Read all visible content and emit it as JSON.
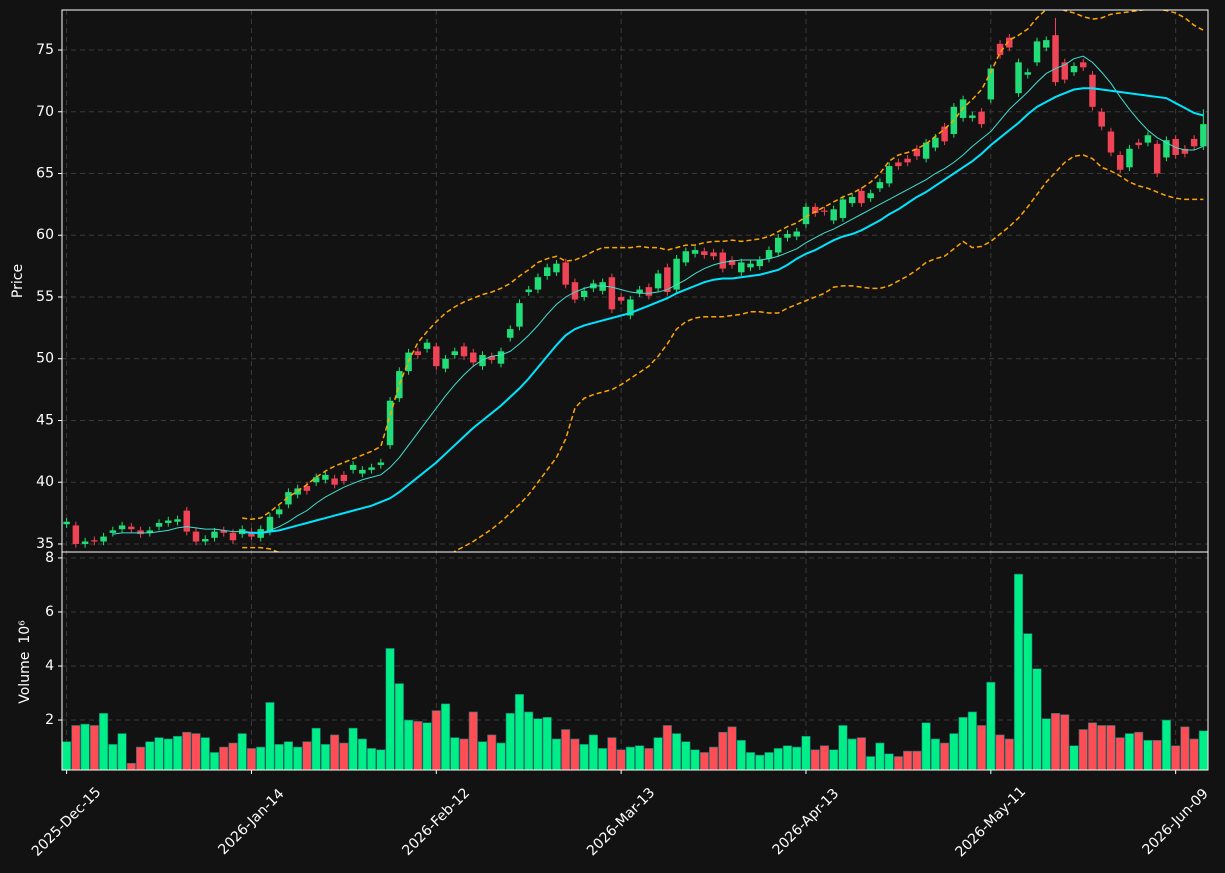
{
  "chart_data": {
    "type": "candlestick",
    "ylabel": "Price",
    "ylim": [
      34.35,
      78.24
    ],
    "yticks": [
      35,
      40,
      45,
      50,
      55,
      60,
      65,
      70,
      75
    ],
    "grid": true,
    "up_color": "#22dd77",
    "down_color": "#ee4455",
    "categories": [
      "2025-Dec-15",
      null,
      null,
      null,
      null,
      null,
      null,
      null,
      null,
      null,
      null,
      null,
      null,
      null,
      null,
      null,
      null,
      null,
      null,
      null,
      "2026-Jan-14",
      null,
      null,
      null,
      null,
      null,
      null,
      null,
      null,
      null,
      null,
      null,
      null,
      null,
      null,
      null,
      null,
      null,
      null,
      null,
      "2026-Feb-12",
      null,
      null,
      null,
      null,
      null,
      null,
      null,
      null,
      null,
      null,
      null,
      null,
      null,
      null,
      null,
      null,
      null,
      null,
      null,
      "2026-Mar-13",
      null,
      null,
      null,
      null,
      null,
      null,
      null,
      null,
      null,
      null,
      null,
      null,
      null,
      null,
      null,
      null,
      null,
      null,
      null,
      "2026-Apr-13",
      null,
      null,
      null,
      null,
      null,
      null,
      null,
      null,
      null,
      null,
      null,
      null,
      null,
      null,
      null,
      null,
      null,
      null,
      null,
      "2026-May-11",
      null,
      null,
      null,
      null,
      null,
      null,
      null,
      null,
      null,
      null,
      null,
      null,
      null,
      null,
      null,
      null,
      null,
      null,
      null,
      "2026-Jun-09",
      null,
      null,
      null
    ],
    "open": [
      36.6,
      36.5,
      35.0,
      35.3,
      35.2,
      35.9,
      36.2,
      36.4,
      36.1,
      35.9,
      36.4,
      36.7,
      36.8,
      37.7,
      36.0,
      35.2,
      35.5,
      36.1,
      35.9,
      35.8,
      36.0,
      35.5,
      36.0,
      37.4,
      38.2,
      39.0,
      39.7,
      40.0,
      40.2,
      40.3,
      40.6,
      41.0,
      40.7,
      41.0,
      41.4,
      43.0,
      46.8,
      49.0,
      50.6,
      50.8,
      51.0,
      49.2,
      50.3,
      51.0,
      50.5,
      49.4,
      50.2,
      49.6,
      51.7,
      52.6,
      55.4,
      55.6,
      56.7,
      57.0,
      57.8,
      56.2,
      55.0,
      55.7,
      55.5,
      56.6,
      55.0,
      53.5,
      55.3,
      55.8,
      55.7,
      57.4,
      55.6,
      57.8,
      58.5,
      58.7,
      58.6,
      58.6,
      58.0,
      57.0,
      57.4,
      57.5,
      58.1,
      58.6,
      59.8,
      59.9,
      60.9,
      62.3,
      62.0,
      61.2,
      61.4,
      62.6,
      63.6,
      63.0,
      63.8,
      64.2,
      65.9,
      66.2,
      67.0,
      66.2,
      67.1,
      68.8,
      68.2,
      69.5,
      69.5,
      70.0,
      71.0,
      75.5,
      76.0,
      71.5,
      73.0,
      74.0,
      75.2,
      76.2,
      74.0,
      73.2,
      74.0,
      73.0,
      70.0,
      68.4,
      66.5,
      65.5,
      67.5,
      67.5,
      67.4,
      66.3,
      67.8,
      67.0,
      67.8,
      67.2
    ],
    "high": [
      37.1,
      36.8,
      35.5,
      35.6,
      35.9,
      36.4,
      36.8,
      36.7,
      36.4,
      36.4,
      37.0,
      37.2,
      37.3,
      38.0,
      36.3,
      35.7,
      36.3,
      36.4,
      36.2,
      36.5,
      36.3,
      36.5,
      37.5,
      38.1,
      39.5,
      39.8,
      40.0,
      40.7,
      40.9,
      40.6,
      40.9,
      41.7,
      41.3,
      41.5,
      41.9,
      46.9,
      49.3,
      50.8,
      50.9,
      51.6,
      51.3,
      50.3,
      50.9,
      51.3,
      50.8,
      50.6,
      50.5,
      50.9,
      52.7,
      54.8,
      55.9,
      56.9,
      57.7,
      58.0,
      58.1,
      56.5,
      55.8,
      56.4,
      56.5,
      56.9,
      55.3,
      55.1,
      55.9,
      56.1,
      57.2,
      57.7,
      58.4,
      59.0,
      59.1,
      59.0,
      58.9,
      58.9,
      58.3,
      58.1,
      58.0,
      58.3,
      59.1,
      60.1,
      60.4,
      60.6,
      62.6,
      62.6,
      62.3,
      62.4,
      63.2,
      63.4,
      63.9,
      63.7,
      64.6,
      65.9,
      66.2,
      66.5,
      67.3,
      67.8,
      68.2,
      69.1,
      70.7,
      71.3,
      70.0,
      70.3,
      73.8,
      75.8,
      76.3,
      74.3,
      73.5,
      76.0,
      76.1,
      77.6,
      74.3,
      74.0,
      74.3,
      73.3,
      70.3,
      68.7,
      66.8,
      67.3,
      67.8,
      68.4,
      67.7,
      68.0,
      68.1,
      67.3,
      68.1,
      70.2
    ],
    "low": [
      36.3,
      34.7,
      34.7,
      34.9,
      34.9,
      35.6,
      35.9,
      35.9,
      35.5,
      35.6,
      36.1,
      36.4,
      36.5,
      35.7,
      34.9,
      34.9,
      35.2,
      35.6,
      35.0,
      35.5,
      35.3,
      35.2,
      35.7,
      37.1,
      37.9,
      38.7,
      39.0,
      39.7,
      39.9,
      39.5,
      39.8,
      40.7,
      40.4,
      40.7,
      41.1,
      42.7,
      46.5,
      48.7,
      50.0,
      50.5,
      49.1,
      48.9,
      50.0,
      49.9,
      49.4,
      49.1,
      49.6,
      49.3,
      51.4,
      52.3,
      55.1,
      55.3,
      56.4,
      56.7,
      55.7,
      54.5,
      54.7,
      55.4,
      55.2,
      53.7,
      54.4,
      53.2,
      55.0,
      54.8,
      55.4,
      55.1,
      55.3,
      57.5,
      58.2,
      58.1,
      58.0,
      57.0,
      57.3,
      56.7,
      57.1,
      57.2,
      57.8,
      58.3,
      59.5,
      59.6,
      60.6,
      61.5,
      61.6,
      60.9,
      61.1,
      62.3,
      62.3,
      62.7,
      63.5,
      63.9,
      65.3,
      65.6,
      66.1,
      65.9,
      66.8,
      67.3,
      67.9,
      69.2,
      69.2,
      68.7,
      70.7,
      74.3,
      74.9,
      71.2,
      72.7,
      73.7,
      74.9,
      72.1,
      72.3,
      72.9,
      73.3,
      70.1,
      68.5,
      66.4,
      65.0,
      65.2,
      67.0,
      67.2,
      64.7,
      66.0,
      66.2,
      66.3,
      66.9,
      66.9
    ],
    "close": [
      36.8,
      35.0,
      35.2,
      35.2,
      35.6,
      36.1,
      36.5,
      36.2,
      35.8,
      36.1,
      36.7,
      36.9,
      37.0,
      36.0,
      35.2,
      35.4,
      36.0,
      35.9,
      35.3,
      36.2,
      35.6,
      36.2,
      37.2,
      37.8,
      39.2,
      39.5,
      39.3,
      40.4,
      40.6,
      39.8,
      40.1,
      41.4,
      41.0,
      41.2,
      41.6,
      46.6,
      49.0,
      50.5,
      50.3,
      51.3,
      49.4,
      50.0,
      50.6,
      50.2,
      49.7,
      50.3,
      49.9,
      50.6,
      52.4,
      54.5,
      55.6,
      56.6,
      57.4,
      57.7,
      56.0,
      54.8,
      55.5,
      56.1,
      56.2,
      54.0,
      54.7,
      54.8,
      55.6,
      55.1,
      56.9,
      55.4,
      58.1,
      58.7,
      58.8,
      58.4,
      58.3,
      57.3,
      57.6,
      57.8,
      57.7,
      58.0,
      58.8,
      59.8,
      60.1,
      60.3,
      62.3,
      61.8,
      61.9,
      62.1,
      62.9,
      63.1,
      62.6,
      63.4,
      64.3,
      65.6,
      65.6,
      65.9,
      66.4,
      67.5,
      67.9,
      67.6,
      70.4,
      71.0,
      69.7,
      69.0,
      73.5,
      74.6,
      75.2,
      74.0,
      73.2,
      75.7,
      75.8,
      72.4,
      72.6,
      73.7,
      73.6,
      70.4,
      68.8,
      66.7,
      65.3,
      67.0,
      67.3,
      68.1,
      65.0,
      67.7,
      66.5,
      66.6,
      67.2,
      69.0
    ],
    "overlays": [
      {
        "color": "#ffa500",
        "width": 1.5,
        "dashed": true,
        "values": [
          null,
          null,
          null,
          null,
          null,
          null,
          null,
          null,
          null,
          null,
          null,
          null,
          null,
          null,
          null,
          null,
          null,
          null,
          null,
          37.1,
          37.0,
          37.1,
          37.6,
          38.2,
          38.8,
          39.3,
          39.8,
          40.4,
          40.9,
          41.3,
          41.6,
          41.9,
          42.2,
          42.5,
          42.9,
          45.4,
          47.9,
          49.8,
          51.3,
          52.2,
          53.0,
          53.7,
          54.2,
          54.6,
          54.9,
          55.2,
          55.4,
          55.7,
          56.1,
          56.7,
          57.2,
          57.8,
          58.1,
          58.3,
          57.9,
          58.0,
          58.3,
          58.7,
          59.0,
          59.0,
          59.0,
          59.0,
          59.1,
          59.0,
          59.0,
          58.8,
          59.0,
          59.2,
          59.2,
          59.4,
          59.5,
          59.5,
          59.6,
          59.5,
          59.6,
          59.7,
          59.9,
          60.3,
          60.7,
          61.0,
          61.5,
          61.9,
          62.3,
          62.7,
          63.1,
          63.4,
          63.8,
          64.3,
          65.0,
          66.0,
          66.5,
          66.7,
          67.0,
          67.4,
          68.0,
          68.6,
          69.3,
          70.3,
          71.0,
          71.8,
          73.2,
          74.8,
          75.8,
          76.2,
          76.7,
          77.6,
          78.3,
          78.5,
          78.2,
          78.0,
          77.7,
          77.5,
          77.6,
          77.9,
          78.0,
          78.1,
          78.2,
          78.3,
          78.3,
          78.2,
          78.0,
          77.6,
          77.0,
          76.6
        ]
      },
      {
        "color": "#ffa500",
        "width": 1.5,
        "dashed": true,
        "values": [
          null,
          null,
          null,
          null,
          null,
          null,
          null,
          null,
          null,
          null,
          null,
          null,
          null,
          null,
          null,
          null,
          null,
          null,
          null,
          34.7,
          34.7,
          34.7,
          34.6,
          34.3,
          34.0,
          33.7,
          33.4,
          33.1,
          32.8,
          32.5,
          32.3,
          32.2,
          32.1,
          32.1,
          32.2,
          31.6,
          31.2,
          31.3,
          31.8,
          32.4,
          33.1,
          33.8,
          34.4,
          34.8,
          35.2,
          35.7,
          36.2,
          36.8,
          37.5,
          38.2,
          39.0,
          40.0,
          41.0,
          42.0,
          43.5,
          46.0,
          46.8,
          47.1,
          47.3,
          47.5,
          47.9,
          48.4,
          48.9,
          49.4,
          50.2,
          51.2,
          52.4,
          53.0,
          53.3,
          53.4,
          53.4,
          53.4,
          53.5,
          53.6,
          53.8,
          53.8,
          53.7,
          53.7,
          54.1,
          54.4,
          54.7,
          55.0,
          55.3,
          55.8,
          55.9,
          55.9,
          55.8,
          55.7,
          55.7,
          55.9,
          56.3,
          56.7,
          57.2,
          57.8,
          58.1,
          58.3,
          58.9,
          59.5,
          59.0,
          59.1,
          59.5,
          60.1,
          60.7,
          61.4,
          62.3,
          63.3,
          64.3,
          65.1,
          65.9,
          66.4,
          66.5,
          66.2,
          65.5,
          65.2,
          64.8,
          64.3,
          64.0,
          63.8,
          63.5,
          63.2,
          63.0,
          62.9,
          62.9,
          62.9
        ]
      },
      {
        "color": "#40e0d0",
        "width": 1,
        "dashed": false,
        "values": [
          null,
          null,
          null,
          null,
          null,
          35.8,
          35.9,
          35.9,
          35.9,
          35.9,
          36.0,
          36.1,
          36.3,
          36.4,
          36.3,
          36.2,
          36.2,
          36.1,
          36.0,
          36.0,
          35.9,
          35.9,
          36.1,
          36.4,
          36.8,
          37.3,
          37.7,
          38.3,
          38.8,
          39.2,
          39.6,
          39.9,
          40.2,
          40.4,
          40.6,
          41.2,
          42.0,
          43.0,
          44.0,
          45.0,
          46.0,
          47.0,
          47.9,
          48.7,
          49.4,
          49.9,
          50.2,
          50.3,
          50.6,
          51.2,
          51.9,
          52.7,
          53.6,
          54.4,
          55.0,
          55.4,
          55.7,
          55.9,
          55.9,
          55.8,
          55.6,
          55.4,
          55.3,
          55.3,
          55.4,
          55.6,
          56.0,
          56.4,
          56.9,
          57.3,
          57.6,
          57.8,
          57.9,
          58.0,
          58.0,
          58.0,
          58.1,
          58.3,
          58.6,
          58.9,
          59.4,
          59.8,
          60.2,
          60.5,
          60.9,
          61.3,
          61.7,
          62.1,
          62.5,
          62.9,
          63.3,
          63.7,
          64.1,
          64.5,
          65.0,
          65.4,
          65.9,
          66.5,
          67.2,
          67.8,
          68.4,
          69.3,
          70.2,
          70.9,
          71.6,
          72.4,
          73.1,
          73.5,
          73.8,
          74.3,
          74.5,
          74.0,
          73.2,
          72.3,
          71.2,
          70.2,
          69.3,
          68.5,
          67.9,
          67.5,
          67.1,
          66.9,
          66.9,
          67.2
        ]
      },
      {
        "color": "#00e5ff",
        "width": 2,
        "dashed": false,
        "values": [
          null,
          null,
          null,
          null,
          null,
          null,
          null,
          null,
          null,
          null,
          null,
          null,
          null,
          null,
          null,
          null,
          null,
          null,
          null,
          36.0,
          35.9,
          35.9,
          36.0,
          36.1,
          36.3,
          36.5,
          36.7,
          36.9,
          37.1,
          37.3,
          37.5,
          37.7,
          37.9,
          38.1,
          38.4,
          38.7,
          39.2,
          39.8,
          40.4,
          41.0,
          41.6,
          42.3,
          43.0,
          43.7,
          44.4,
          45.0,
          45.6,
          46.2,
          46.9,
          47.6,
          48.4,
          49.3,
          50.2,
          51.1,
          51.9,
          52.4,
          52.7,
          52.9,
          53.1,
          53.3,
          53.5,
          53.7,
          54.0,
          54.3,
          54.6,
          54.9,
          55.3,
          55.6,
          55.9,
          56.2,
          56.4,
          56.5,
          56.5,
          56.6,
          56.7,
          56.8,
          57.0,
          57.2,
          57.6,
          58.1,
          58.5,
          58.8,
          59.2,
          59.6,
          59.9,
          60.1,
          60.4,
          60.8,
          61.2,
          61.7,
          62.1,
          62.6,
          63.1,
          63.5,
          64.0,
          64.5,
          65.0,
          65.5,
          66.0,
          66.6,
          67.3,
          67.9,
          68.5,
          69.1,
          69.8,
          70.4,
          70.8,
          71.2,
          71.5,
          71.8,
          71.9,
          71.9,
          71.8,
          71.7,
          71.6,
          71.5,
          71.4,
          71.3,
          71.2,
          71.1,
          70.7,
          70.3,
          69.9,
          69.7
        ]
      }
    ],
    "volume": {
      "ylabel": "Volume",
      "offset_label": "10⁶",
      "ylim": [
        0.15,
        8.22
      ],
      "yticks": [
        2,
        4,
        6,
        8
      ],
      "up_color": "#00ee88",
      "down_color": "#ff4d55",
      "values": [
        1.2,
        1.8,
        1.85,
        1.8,
        2.25,
        1.1,
        1.5,
        0.4,
        1.0,
        1.2,
        1.35,
        1.3,
        1.4,
        1.55,
        1.5,
        1.35,
        0.8,
        1.0,
        1.15,
        1.5,
        0.95,
        1.0,
        2.65,
        1.1,
        1.2,
        1.0,
        1.2,
        1.7,
        1.1,
        1.45,
        1.15,
        1.7,
        1.3,
        0.95,
        0.9,
        4.65,
        3.35,
        2.0,
        1.95,
        1.9,
        2.35,
        2.6,
        1.35,
        1.3,
        2.3,
        1.2,
        1.45,
        1.15,
        2.25,
        2.95,
        2.3,
        2.05,
        2.1,
        1.3,
        1.65,
        1.3,
        1.1,
        1.45,
        0.95,
        1.35,
        0.9,
        1.0,
        1.05,
        0.95,
        1.35,
        1.8,
        1.5,
        1.2,
        0.9,
        0.8,
        1.0,
        1.55,
        1.75,
        1.25,
        0.8,
        0.7,
        0.8,
        0.95,
        1.05,
        1.0,
        1.4,
        0.9,
        1.05,
        0.9,
        1.8,
        1.3,
        1.35,
        0.65,
        1.15,
        0.75,
        0.65,
        0.85,
        0.85,
        1.9,
        1.3,
        1.15,
        1.5,
        2.1,
        2.3,
        1.8,
        3.4,
        1.45,
        1.3,
        7.4,
        5.2,
        3.9,
        2.05,
        2.25,
        2.2,
        1.05,
        1.65,
        1.9,
        1.8,
        1.8,
        1.35,
        1.5,
        1.55,
        1.25,
        1.25,
        2.0,
        1.05,
        1.75,
        1.3,
        1.6
      ]
    }
  }
}
